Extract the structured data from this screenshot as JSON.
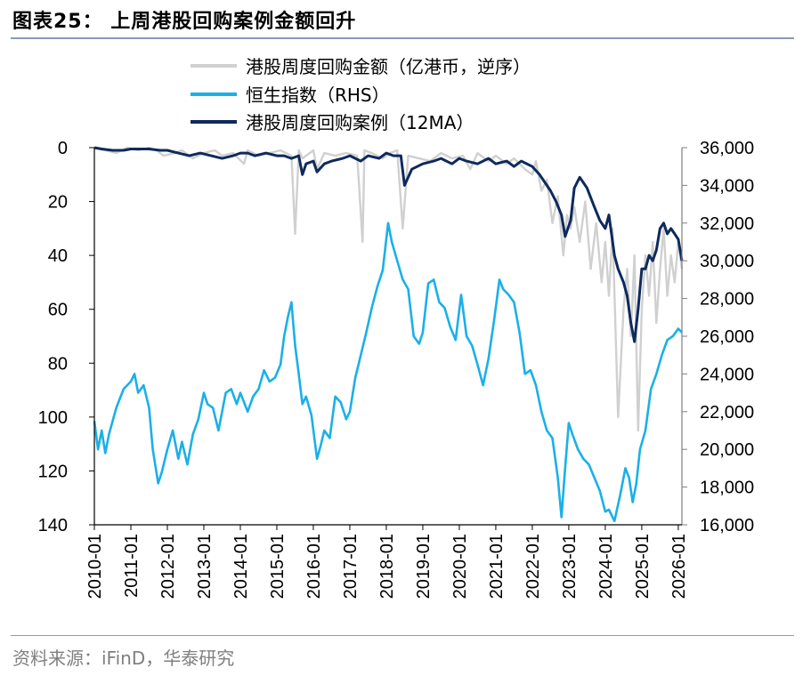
{
  "figure": {
    "title": "图表25：  上周港股回购案例金额回升",
    "source": "资料来源：iFinD，华泰研究"
  },
  "chart_data": {
    "type": "line",
    "left_axis": {
      "min": 0,
      "max": 140,
      "inverted": true,
      "ticks": [
        "0",
        "20",
        "40",
        "60",
        "80",
        "100",
        "120",
        "140"
      ],
      "tick_values": [
        0,
        20,
        40,
        60,
        80,
        100,
        120,
        140
      ]
    },
    "right_axis": {
      "min": 16000,
      "max": 36000,
      "ticks": [
        "36,000",
        "34,000",
        "32,000",
        "30,000",
        "28,000",
        "26,000",
        "24,000",
        "22,000",
        "20,000",
        "18,000",
        "16,000"
      ],
      "tick_values": [
        36000,
        34000,
        32000,
        30000,
        28000,
        26000,
        24000,
        22000,
        20000,
        18000,
        16000
      ]
    },
    "x_axis": {
      "min": 2010.0,
      "max": 2026.1,
      "ticks": [
        "2010-01",
        "2011-01",
        "2012-01",
        "2013-01",
        "2014-01",
        "2015-01",
        "2016-01",
        "2017-01",
        "2018-01",
        "2019-01",
        "2020-01",
        "2021-01",
        "2022-01",
        "2023-01",
        "2024-01",
        "2025-01",
        "2026-01"
      ],
      "tick_values": [
        2010,
        2011,
        2012,
        2013,
        2014,
        2015,
        2016,
        2017,
        2018,
        2019,
        2020,
        2021,
        2022,
        2023,
        2024,
        2025,
        2026
      ]
    },
    "legend": {
      "position": "top",
      "entries": [
        "港股周度回购金额（亿港币，逆序）",
        "恒生指数（RHS）",
        "港股周度回购案例（12MA）"
      ]
    },
    "series": [
      {
        "name": "港股周度回购金额（亿港币，逆序）",
        "axis": "left",
        "color": "#d0d0d0",
        "x": [
          2010.0,
          2010.3,
          2010.6,
          2010.9,
          2011.2,
          2011.5,
          2011.7,
          2011.9,
          2012.2,
          2012.4,
          2012.7,
          2013.0,
          2013.3,
          2013.5,
          2013.8,
          2014.1,
          2014.2,
          2014.5,
          2014.8,
          2015.1,
          2015.4,
          2015.5,
          2015.6,
          2015.7,
          2015.8,
          2016.0,
          2016.1,
          2016.3,
          2016.6,
          2016.9,
          2017.2,
          2017.35,
          2017.4,
          2017.6,
          2017.9,
          2018.1,
          2018.3,
          2018.45,
          2018.6,
          2018.9,
          2019.2,
          2019.5,
          2019.8,
          2020.1,
          2020.3,
          2020.5,
          2020.8,
          2021.0,
          2021.3,
          2021.5,
          2021.8,
          2022.0,
          2022.1,
          2022.25,
          2022.4,
          2022.55,
          2022.7,
          2022.85,
          2022.95,
          2023.05,
          2023.15,
          2023.3,
          2023.45,
          2023.6,
          2023.75,
          2023.9,
          2024.0,
          2024.1,
          2024.2,
          2024.35,
          2024.5,
          2024.6,
          2024.7,
          2024.8,
          2024.9,
          2025.0,
          2025.1,
          2025.2,
          2025.3,
          2025.4,
          2025.5,
          2025.6,
          2025.7,
          2025.8,
          2025.9,
          2026.0,
          2026.1
        ],
        "y": [
          0,
          1,
          2,
          0,
          1,
          0,
          1,
          3,
          2,
          1,
          4,
          2,
          1,
          3,
          2,
          6,
          1,
          3,
          2,
          1,
          3,
          32,
          1,
          4,
          3,
          1,
          8,
          2,
          3,
          2,
          3,
          35,
          1,
          2,
          4,
          2,
          1,
          30,
          3,
          4,
          5,
          2,
          4,
          3,
          8,
          2,
          5,
          3,
          6,
          4,
          8,
          10,
          5,
          16,
          12,
          28,
          18,
          40,
          25,
          30,
          22,
          35,
          20,
          45,
          28,
          50,
          35,
          55,
          30,
          100,
          60,
          45,
          70,
          40,
          105,
          60,
          40,
          55,
          35,
          65,
          45,
          30,
          55,
          40,
          50,
          35,
          45
        ]
      },
      {
        "name": "恒生指数（RHS）",
        "axis": "right",
        "color": "#1ab0e8",
        "x": [
          2010.0,
          2010.1,
          2010.2,
          2010.3,
          2010.4,
          2010.6,
          2010.8,
          2011.0,
          2011.1,
          2011.2,
          2011.35,
          2011.5,
          2011.6,
          2011.75,
          2011.85,
          2012.0,
          2012.15,
          2012.3,
          2012.4,
          2012.55,
          2012.7,
          2012.85,
          2013.0,
          2013.1,
          2013.25,
          2013.4,
          2013.5,
          2013.6,
          2013.75,
          2013.9,
          2014.0,
          2014.2,
          2014.35,
          2014.5,
          2014.65,
          2014.8,
          2014.95,
          2015.1,
          2015.2,
          2015.3,
          2015.4,
          2015.5,
          2015.6,
          2015.7,
          2015.8,
          2015.95,
          2016.1,
          2016.2,
          2016.3,
          2016.45,
          2016.6,
          2016.75,
          2016.9,
          2017.0,
          2017.15,
          2017.3,
          2017.45,
          2017.6,
          2017.75,
          2017.9,
          2018.05,
          2018.15,
          2018.3,
          2018.45,
          2018.6,
          2018.75,
          2018.9,
          2019.0,
          2019.15,
          2019.3,
          2019.45,
          2019.6,
          2019.75,
          2019.9,
          2020.05,
          2020.2,
          2020.35,
          2020.5,
          2020.65,
          2020.8,
          2020.95,
          2021.1,
          2021.2,
          2021.35,
          2021.5,
          2021.65,
          2021.8,
          2021.95,
          2022.1,
          2022.25,
          2022.4,
          2022.55,
          2022.7,
          2022.8,
          2022.9,
          2023.0,
          2023.1,
          2023.25,
          2023.4,
          2023.55,
          2023.7,
          2023.85,
          2024.0,
          2024.1,
          2024.25,
          2024.4,
          2024.55,
          2024.65,
          2024.75,
          2024.85,
          2024.95,
          2025.1,
          2025.25,
          2025.4,
          2025.55,
          2025.7,
          2025.85,
          2026.0,
          2026.1
        ],
        "y": [
          21500,
          20000,
          21000,
          19800,
          20800,
          22200,
          23200,
          23600,
          24000,
          23000,
          23400,
          22200,
          20000,
          18200,
          18800,
          20000,
          21000,
          19500,
          20400,
          19200,
          20800,
          21600,
          23000,
          22400,
          22200,
          21000,
          22000,
          23000,
          23200,
          22400,
          23000,
          22000,
          22800,
          23200,
          24200,
          23600,
          23800,
          24500,
          26000,
          27000,
          27800,
          25500,
          24000,
          22400,
          22800,
          21800,
          19500,
          20200,
          21000,
          20600,
          22800,
          22500,
          21600,
          22000,
          23800,
          25000,
          26200,
          27500,
          28600,
          29500,
          32000,
          31000,
          30000,
          29000,
          28500,
          26000,
          25600,
          26200,
          28800,
          29000,
          27800,
          27500,
          26500,
          25800,
          28200,
          26000,
          25500,
          24500,
          23400,
          24800,
          26800,
          29000,
          28500,
          28200,
          27800,
          26200,
          24000,
          24200,
          23400,
          22000,
          21000,
          20600,
          18500,
          16400,
          19000,
          21400,
          20800,
          20000,
          19500,
          19200,
          18500,
          17800,
          16700,
          16800,
          16200,
          17500,
          19000,
          18500,
          17200,
          18200,
          20000,
          21000,
          23200,
          24000,
          25000,
          25800,
          26000,
          26400,
          26200
        ]
      },
      {
        "name": "港股周度回购案例（12MA）",
        "axis": "left",
        "color": "#0e2a5c",
        "x": [
          2010.0,
          2010.2,
          2010.5,
          2010.8,
          2011.0,
          2011.2,
          2011.5,
          2011.8,
          2012.0,
          2012.3,
          2012.6,
          2012.9,
          2013.2,
          2013.5,
          2013.8,
          2014.0,
          2014.2,
          2014.4,
          2014.7,
          2015.0,
          2015.2,
          2015.4,
          2015.6,
          2015.7,
          2015.8,
          2016.0,
          2016.1,
          2016.3,
          2016.5,
          2016.8,
          2017.0,
          2017.3,
          2017.5,
          2017.8,
          2018.0,
          2018.2,
          2018.4,
          2018.5,
          2018.7,
          2019.0,
          2019.3,
          2019.5,
          2019.8,
          2020.0,
          2020.2,
          2020.5,
          2020.8,
          2021.0,
          2021.3,
          2021.5,
          2021.7,
          2022.0,
          2022.2,
          2022.4,
          2022.5,
          2022.65,
          2022.8,
          2022.9,
          2023.05,
          2023.15,
          2023.3,
          2023.5,
          2023.7,
          2023.85,
          2024.0,
          2024.1,
          2024.25,
          2024.35,
          2024.5,
          2024.6,
          2024.7,
          2024.8,
          2024.9,
          2025.0,
          2025.1,
          2025.2,
          2025.3,
          2025.4,
          2025.5,
          2025.6,
          2025.7,
          2025.8,
          2025.9,
          2026.0,
          2026.1
        ],
        "y": [
          0,
          0.5,
          1,
          1,
          0.5,
          0.5,
          0.5,
          1,
          1,
          2,
          3,
          2,
          3,
          4,
          3,
          2,
          2,
          3,
          2,
          3,
          3,
          4,
          3,
          10,
          6,
          5,
          9,
          6,
          5,
          4,
          3,
          5,
          3,
          4,
          2,
          3,
          3,
          14,
          8,
          6,
          5,
          4,
          6,
          4,
          5,
          6,
          4,
          6,
          5,
          7,
          5,
          7,
          10,
          14,
          16,
          20,
          25,
          33,
          27,
          15,
          11,
          15,
          22,
          27,
          30,
          25,
          40,
          45,
          50,
          55,
          65,
          72,
          60,
          45,
          45,
          40,
          42,
          38,
          30,
          28,
          32,
          30,
          32,
          34,
          42
        ]
      }
    ]
  }
}
